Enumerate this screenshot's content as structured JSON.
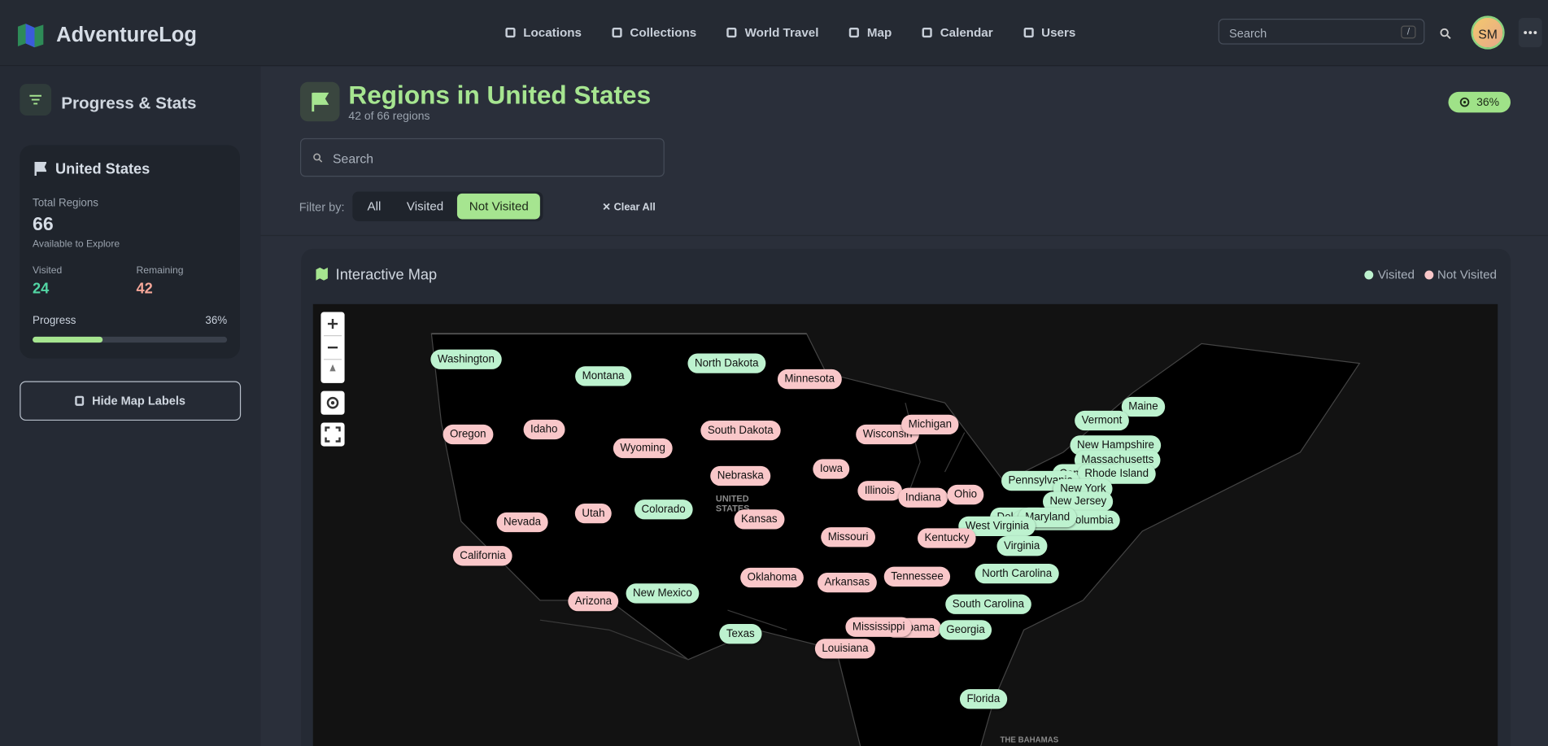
{
  "nav": {
    "brand": "AdventureLog",
    "items": [
      "Locations",
      "Collections",
      "World Travel",
      "Map",
      "Calendar",
      "Users"
    ],
    "search_placeholder": "Search",
    "search_shortcut": "/",
    "avatar": "SM"
  },
  "sidebar": {
    "title": "Progress & Stats",
    "country": "United States",
    "total_label": "Total Regions",
    "total": 66,
    "total_caption": "Available to Explore",
    "visited_label": "Visited",
    "visited": 24,
    "remaining_label": "Remaining",
    "remaining": 42,
    "progress_label": "Progress",
    "progress": {
      "value": 36,
      "label": "36%"
    },
    "toggle": "Hide Map Labels"
  },
  "header": {
    "title": "Regions in United States",
    "subtitle": "42 of 66 regions",
    "search_placeholder": "Search",
    "filter_label": "Filter by:",
    "filters": [
      "All",
      "Visited",
      "Not Visited"
    ],
    "active_filter": 2,
    "clear": "Clear All"
  },
  "map": {
    "title": "Interactive Map",
    "legend": [
      {
        "name": "Visited",
        "color": "#bdf2cf"
      },
      {
        "name": "Not Visited",
        "color": "#f9c7c9"
      }
    ],
    "basemap_labels": [
      "UNITED STATES",
      "THE BAHAMAS"
    ],
    "regions": [
      {
        "name": "Washington",
        "visited": true
      },
      {
        "name": "Montana",
        "visited": true
      },
      {
        "name": "North Dakota",
        "visited": true
      },
      {
        "name": "Minnesota",
        "visited": false
      },
      {
        "name": "Oregon",
        "visited": false
      },
      {
        "name": "Idaho",
        "visited": false
      },
      {
        "name": "Wyoming",
        "visited": false
      },
      {
        "name": "South Dakota",
        "visited": false
      },
      {
        "name": "Wisconsin",
        "visited": false
      },
      {
        "name": "Michigan",
        "visited": false
      },
      {
        "name": "Maine",
        "visited": true
      },
      {
        "name": "Vermont",
        "visited": true
      },
      {
        "name": "New Hampshire",
        "visited": true
      },
      {
        "name": "Massachusetts",
        "visited": true
      },
      {
        "name": "Connecticut",
        "visited": true
      },
      {
        "name": "Rhode Island",
        "visited": true
      },
      {
        "name": "Pennsylvania",
        "visited": true
      },
      {
        "name": "New York",
        "visited": true
      },
      {
        "name": "New Jersey",
        "visited": true
      },
      {
        "name": "Delaware",
        "visited": true
      },
      {
        "name": "District of Columbia",
        "visited": true
      },
      {
        "name": "Maryland",
        "visited": true
      },
      {
        "name": "West Virginia",
        "visited": true
      },
      {
        "name": "Virginia",
        "visited": true
      },
      {
        "name": "Nebraska",
        "visited": false
      },
      {
        "name": "Iowa",
        "visited": false
      },
      {
        "name": "Illinois",
        "visited": false
      },
      {
        "name": "Indiana",
        "visited": false
      },
      {
        "name": "Ohio",
        "visited": false
      },
      {
        "name": "Nevada",
        "visited": false
      },
      {
        "name": "Utah",
        "visited": false
      },
      {
        "name": "Colorado",
        "visited": true
      },
      {
        "name": "Kansas",
        "visited": false
      },
      {
        "name": "Missouri",
        "visited": false
      },
      {
        "name": "Kentucky",
        "visited": false
      },
      {
        "name": "California",
        "visited": false
      },
      {
        "name": "North Carolina",
        "visited": true
      },
      {
        "name": "Tennessee",
        "visited": false
      },
      {
        "name": "Oklahoma",
        "visited": false
      },
      {
        "name": "Arkansas",
        "visited": false
      },
      {
        "name": "Arizona",
        "visited": false
      },
      {
        "name": "New Mexico",
        "visited": true
      },
      {
        "name": "South Carolina",
        "visited": true
      },
      {
        "name": "Alabama",
        "visited": false
      },
      {
        "name": "Mississippi",
        "visited": false
      },
      {
        "name": "Georgia",
        "visited": true
      },
      {
        "name": "Texas",
        "visited": true
      },
      {
        "name": "Louisiana",
        "visited": false
      },
      {
        "name": "Florida",
        "visited": true
      }
    ]
  }
}
